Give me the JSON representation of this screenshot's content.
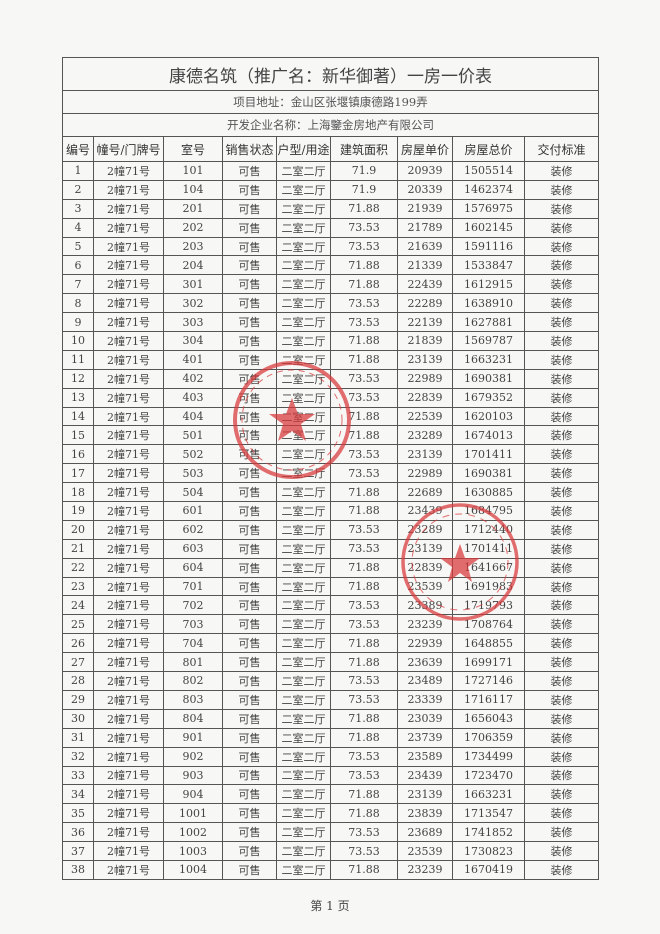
{
  "document": {
    "title": "康德名筑（推广名：新华御著）一房一价表",
    "address": "项目地址：金山区张堰镇康德路199弄",
    "developer": "开发企业名称：上海鑒金房地产有限公司",
    "footer": "第 1 页",
    "stamp_color": "#d9383a"
  },
  "table": {
    "columns": [
      "编号",
      "幢号/门牌号",
      "室号",
      "销售状态",
      "户型/用途",
      "建筑面积",
      "房屋单价",
      "房屋总价",
      "交付标准"
    ],
    "rows": [
      [
        "1",
        "2幢71号",
        "101",
        "可售",
        "二室二厅",
        "71.9",
        "20939",
        "1505514",
        "装修"
      ],
      [
        "2",
        "2幢71号",
        "104",
        "可售",
        "二室二厅",
        "71.9",
        "20339",
        "1462374",
        "装修"
      ],
      [
        "3",
        "2幢71号",
        "201",
        "可售",
        "二室二厅",
        "71.88",
        "21939",
        "1576975",
        "装修"
      ],
      [
        "4",
        "2幢71号",
        "202",
        "可售",
        "二室二厅",
        "73.53",
        "21789",
        "1602145",
        "装修"
      ],
      [
        "5",
        "2幢71号",
        "203",
        "可售",
        "二室二厅",
        "73.53",
        "21639",
        "1591116",
        "装修"
      ],
      [
        "6",
        "2幢71号",
        "204",
        "可售",
        "二室二厅",
        "71.88",
        "21339",
        "1533847",
        "装修"
      ],
      [
        "7",
        "2幢71号",
        "301",
        "可售",
        "二室二厅",
        "71.88",
        "22439",
        "1612915",
        "装修"
      ],
      [
        "8",
        "2幢71号",
        "302",
        "可售",
        "二室二厅",
        "73.53",
        "22289",
        "1638910",
        "装修"
      ],
      [
        "9",
        "2幢71号",
        "303",
        "可售",
        "二室二厅",
        "73.53",
        "22139",
        "1627881",
        "装修"
      ],
      [
        "10",
        "2幢71号",
        "304",
        "可售",
        "二室二厅",
        "71.88",
        "21839",
        "1569787",
        "装修"
      ],
      [
        "11",
        "2幢71号",
        "401",
        "可售",
        "二室二厅",
        "71.88",
        "23139",
        "1663231",
        "装修"
      ],
      [
        "12",
        "2幢71号",
        "402",
        "可售",
        "二室二厅",
        "73.53",
        "22989",
        "1690381",
        "装修"
      ],
      [
        "13",
        "2幢71号",
        "403",
        "可售",
        "二室二厅",
        "73.53",
        "22839",
        "1679352",
        "装修"
      ],
      [
        "14",
        "2幢71号",
        "404",
        "可售",
        "二室二厅",
        "71.88",
        "22539",
        "1620103",
        "装修"
      ],
      [
        "15",
        "2幢71号",
        "501",
        "可售",
        "二室二厅",
        "71.88",
        "23289",
        "1674013",
        "装修"
      ],
      [
        "16",
        "2幢71号",
        "502",
        "可售",
        "二室二厅",
        "73.53",
        "23139",
        "1701411",
        "装修"
      ],
      [
        "17",
        "2幢71号",
        "503",
        "可售",
        "二室二厅",
        "73.53",
        "22989",
        "1690381",
        "装修"
      ],
      [
        "18",
        "2幢71号",
        "504",
        "可售",
        "二室二厅",
        "71.88",
        "22689",
        "1630885",
        "装修"
      ],
      [
        "19",
        "2幢71号",
        "601",
        "可售",
        "二室二厅",
        "71.88",
        "23439",
        "1684795",
        "装修"
      ],
      [
        "20",
        "2幢71号",
        "602",
        "可售",
        "二室二厅",
        "73.53",
        "23289",
        "1712440",
        "装修"
      ],
      [
        "21",
        "2幢71号",
        "603",
        "可售",
        "二室二厅",
        "73.53",
        "23139",
        "1701411",
        "装修"
      ],
      [
        "22",
        "2幢71号",
        "604",
        "可售",
        "二室二厅",
        "71.88",
        "22839",
        "1641667",
        "装修"
      ],
      [
        "23",
        "2幢71号",
        "701",
        "可售",
        "二室二厅",
        "71.88",
        "23539",
        "1691983",
        "装修"
      ],
      [
        "24",
        "2幢71号",
        "702",
        "可售",
        "二室二厅",
        "73.53",
        "23389",
        "1719793",
        "装修"
      ],
      [
        "25",
        "2幢71号",
        "703",
        "可售",
        "二室二厅",
        "73.53",
        "23239",
        "1708764",
        "装修"
      ],
      [
        "26",
        "2幢71号",
        "704",
        "可售",
        "二室二厅",
        "71.88",
        "22939",
        "1648855",
        "装修"
      ],
      [
        "27",
        "2幢71号",
        "801",
        "可售",
        "二室二厅",
        "71.88",
        "23639",
        "1699171",
        "装修"
      ],
      [
        "28",
        "2幢71号",
        "802",
        "可售",
        "二室二厅",
        "73.53",
        "23489",
        "1727146",
        "装修"
      ],
      [
        "29",
        "2幢71号",
        "803",
        "可售",
        "二室二厅",
        "73.53",
        "23339",
        "1716117",
        "装修"
      ],
      [
        "30",
        "2幢71号",
        "804",
        "可售",
        "二室二厅",
        "71.88",
        "23039",
        "1656043",
        "装修"
      ],
      [
        "31",
        "2幢71号",
        "901",
        "可售",
        "二室二厅",
        "71.88",
        "23739",
        "1706359",
        "装修"
      ],
      [
        "32",
        "2幢71号",
        "902",
        "可售",
        "二室二厅",
        "73.53",
        "23589",
        "1734499",
        "装修"
      ],
      [
        "33",
        "2幢71号",
        "903",
        "可售",
        "二室二厅",
        "73.53",
        "23439",
        "1723470",
        "装修"
      ],
      [
        "34",
        "2幢71号",
        "904",
        "可售",
        "二室二厅",
        "71.88",
        "23139",
        "1663231",
        "装修"
      ],
      [
        "35",
        "2幢71号",
        "1001",
        "可售",
        "二室二厅",
        "71.88",
        "23839",
        "1713547",
        "装修"
      ],
      [
        "36",
        "2幢71号",
        "1002",
        "可售",
        "二室二厅",
        "73.53",
        "23689",
        "1741852",
        "装修"
      ],
      [
        "37",
        "2幢71号",
        "1003",
        "可售",
        "二室二厅",
        "73.53",
        "23539",
        "1730823",
        "装修"
      ],
      [
        "38",
        "2幢71号",
        "1004",
        "可售",
        "二室二厅",
        "71.88",
        "23239",
        "1670419",
        "装修"
      ]
    ]
  }
}
